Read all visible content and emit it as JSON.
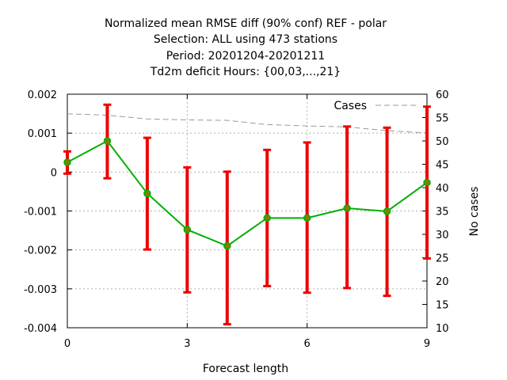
{
  "chart_data": {
    "type": "line",
    "title_lines": [
      "Normalized mean RMSE diff (90% conf) REF - polar",
      "Selection: ALL using   473 stations",
      "Period: 20201204-20201211",
      "Td2m deficit   Hours: {00,03,...,21}"
    ],
    "xlabel": "Forecast length",
    "ylabel": "",
    "y2label": "No cases",
    "xlim": [
      0,
      9
    ],
    "ylim": [
      -0.004,
      0.002
    ],
    "y2lim": [
      10,
      60
    ],
    "x_ticks": [
      0,
      3,
      6,
      9
    ],
    "y_ticks": [
      {
        "value": 0.002,
        "label": "0.002"
      },
      {
        "value": 0.001,
        "label": "0.001"
      },
      {
        "value": 0,
        "label": "0"
      },
      {
        "value": -0.001,
        "label": "-0.001"
      },
      {
        "value": -0.002,
        "label": "-0.002"
      },
      {
        "value": -0.003,
        "label": "-0.003"
      },
      {
        "value": -0.004,
        "label": "-0.004"
      }
    ],
    "y2_ticks": [
      60,
      55,
      50,
      45,
      40,
      35,
      30,
      25,
      20,
      15,
      10
    ],
    "grid": true,
    "legend_position": "top-right",
    "series": [
      {
        "name": "",
        "axis": "y",
        "color": "#00b000",
        "marker_color": "#808000",
        "x": [
          0,
          1,
          2,
          3,
          4,
          5,
          6,
          7,
          8,
          9
        ],
        "y": [
          0.00025,
          0.0008,
          -0.00055,
          -0.00148,
          -0.0019,
          -0.00118,
          -0.00118,
          -0.00093,
          -0.00101,
          -0.00027
        ],
        "error_low": [
          -4e-05,
          -0.00016,
          -0.00199,
          -0.00309,
          -0.00391,
          -0.00293,
          -0.0031,
          -0.00298,
          -0.00318,
          -0.00222
        ],
        "error_high": [
          0.00053,
          0.00173,
          0.00088,
          0.00012,
          1e-05,
          0.00057,
          0.00076,
          0.00117,
          0.00114,
          0.00168
        ],
        "error_color": "#ee0000"
      },
      {
        "name": "Cases",
        "axis": "y2",
        "color": "#999999",
        "dashed": true,
        "x": [
          0,
          1,
          2,
          3,
          4,
          5,
          6,
          7,
          8,
          9
        ],
        "y": [
          55.8,
          55.5,
          54.7,
          54.5,
          54.4,
          53.5,
          53.2,
          53.0,
          52.2,
          51.7
        ]
      }
    ]
  }
}
